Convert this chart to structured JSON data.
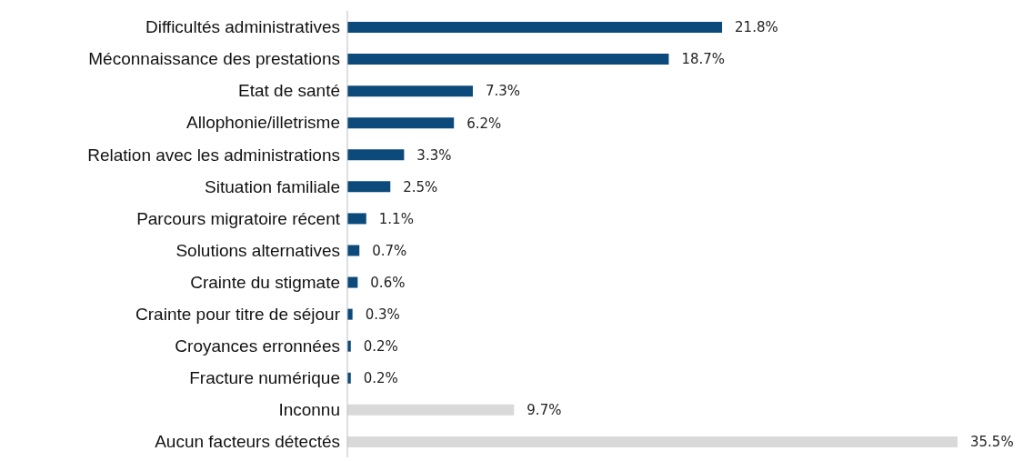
{
  "chart_data": {
    "type": "bar",
    "orientation": "horizontal",
    "categories": [
      "Difficultés administratives",
      "Méconnaissance des prestations",
      "Etat de santé",
      "Allophonie/illetrisme",
      "Relation avec les administrations",
      "Situation familiale",
      "Parcours migratoire récent",
      "Solutions alternatives",
      "Crainte du stigmate",
      "Crainte pour titre de séjour",
      "Croyances erronnées",
      "Fracture numérique",
      "Inconnu",
      "Aucun facteurs détectés"
    ],
    "values": [
      21.8,
      18.7,
      7.3,
      6.2,
      3.3,
      2.5,
      1.1,
      0.7,
      0.6,
      0.3,
      0.2,
      0.2,
      9.7,
      35.5
    ],
    "value_labels": [
      "21.8%",
      "18.7%",
      "7.3%",
      "6.2%",
      "3.3%",
      "2.5%",
      "1.1%",
      "0.7%",
      "0.6%",
      "0.3%",
      "0.2%",
      "0.2%",
      "9.7%",
      "35.5%"
    ],
    "colors": [
      "#0b4a7a",
      "#0b4a7a",
      "#0b4a7a",
      "#0b4a7a",
      "#0b4a7a",
      "#0b4a7a",
      "#0b4a7a",
      "#0b4a7a",
      "#0b4a7a",
      "#0b4a7a",
      "#0b4a7a",
      "#0b4a7a",
      "#d9d9d9",
      "#d9d9d9"
    ],
    "grid": false,
    "legend": false
  }
}
